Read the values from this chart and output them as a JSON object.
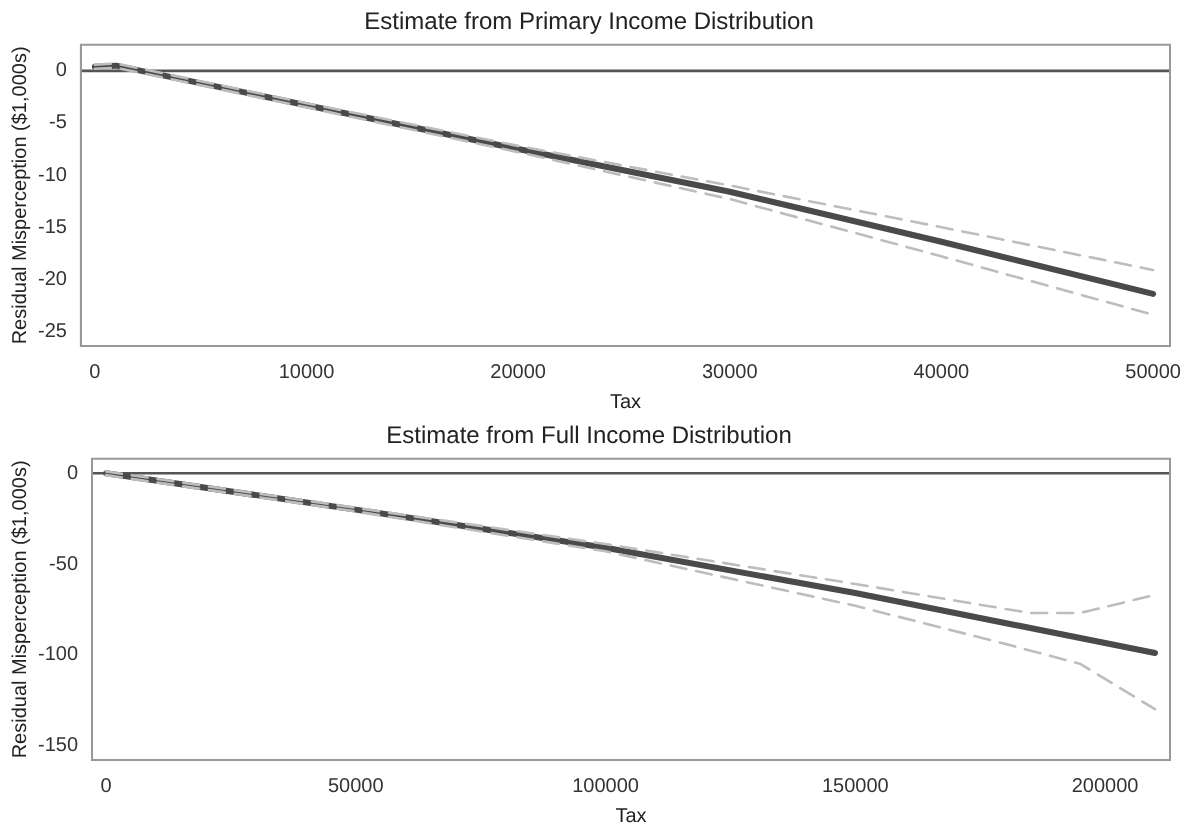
{
  "chart_data": [
    {
      "type": "line",
      "title": "Estimate from Primary Income Distribution",
      "xlabel": "Tax",
      "ylabel": "Residual Misperception ($1,000s)",
      "xlim": [
        -660,
        50800
      ],
      "ylim": [
        -26.4,
        2.5
      ],
      "xticks": [
        0,
        10000,
        20000,
        30000,
        40000,
        50000
      ],
      "yticks": [
        0,
        -5,
        -10,
        -15,
        -20,
        -25
      ],
      "grid": false,
      "legend": false,
      "marker": "none",
      "ref_lines": [
        {
          "axis": "y",
          "value": 0,
          "color": "#555555"
        }
      ],
      "series": [
        {
          "color": "#bdbdbd",
          "line_style": "dashed",
          "x": [
            0,
            1000,
            10000,
            20000,
            30000,
            40000,
            50000
          ],
          "values": [
            0.6,
            0.7,
            -3.1,
            -7.2,
            -11.0,
            -15.0,
            -19.1
          ]
        },
        {
          "color": "#bdbdbd",
          "line_style": "dashed",
          "x": [
            0,
            1000,
            10000,
            20000,
            30000,
            40000,
            50000
          ],
          "values": [
            0.2,
            0.3,
            -3.5,
            -7.8,
            -12.3,
            -17.8,
            -23.4
          ]
        },
        {
          "color": "#4a4a4a",
          "line_style": "solid",
          "x": [
            0,
            1000,
            10000,
            20000,
            30000,
            40000,
            50000
          ],
          "values": [
            0.4,
            0.5,
            -3.3,
            -7.5,
            -11.6,
            -16.4,
            -21.4
          ]
        }
      ]
    },
    {
      "type": "line",
      "title": "Estimate from Full Income Distribution",
      "xlabel": "Tax",
      "ylabel": "Residual Misperception ($1,000s)",
      "xlim": [
        -2800,
        213000
      ],
      "ylim": [
        -158,
        8
      ],
      "xticks": [
        0,
        50000,
        100000,
        150000,
        200000
      ],
      "yticks": [
        0,
        -50,
        -100,
        -150
      ],
      "grid": false,
      "legend": false,
      "marker": "none",
      "ref_lines": [
        {
          "axis": "y",
          "value": 0,
          "color": "#555555"
        }
      ],
      "series": [
        {
          "color": "#bdbdbd",
          "line_style": "dashed",
          "x": [
            0,
            50000,
            100000,
            150000,
            185000,
            195000,
            210000
          ],
          "values": [
            1,
            -19,
            -39,
            -61,
            -77,
            -77,
            -67
          ]
        },
        {
          "color": "#bdbdbd",
          "line_style": "dashed",
          "x": [
            0,
            50000,
            100000,
            150000,
            180000,
            195000,
            210000
          ],
          "values": [
            -1,
            -21,
            -43,
            -73,
            -94,
            -105,
            -130
          ]
        },
        {
          "color": "#4a4a4a",
          "line_style": "solid",
          "x": [
            0,
            50000,
            100000,
            150000,
            210000
          ],
          "values": [
            0,
            -20,
            -41,
            -66,
            -99
          ]
        }
      ]
    }
  ]
}
